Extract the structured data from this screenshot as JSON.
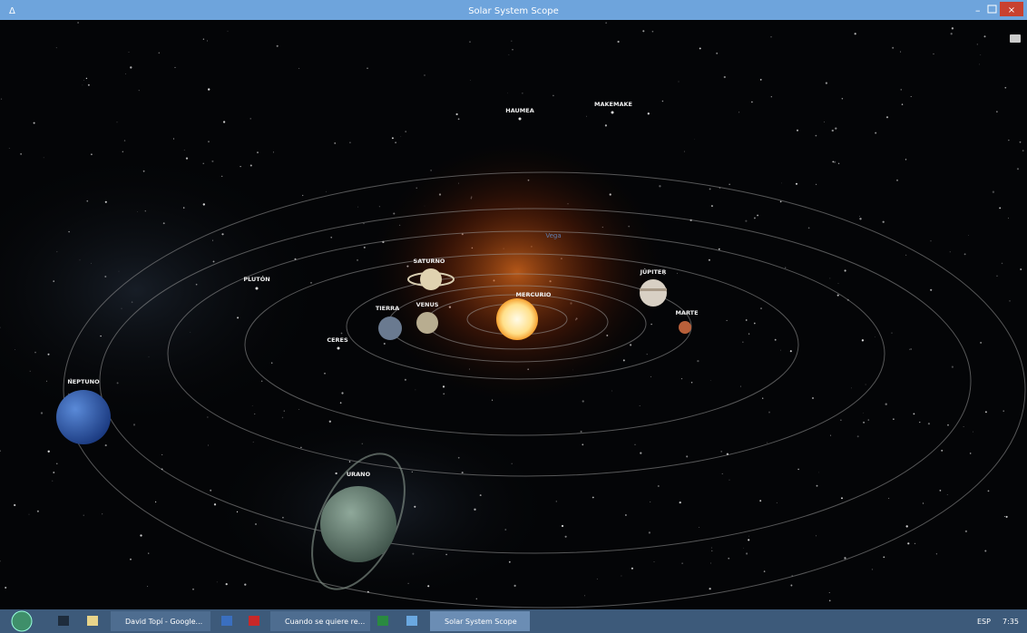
{
  "window": {
    "title": "Solar System Scope"
  },
  "bodies": [
    "HAUMEA",
    "MAKEMAKE",
    "SATURNO",
    "PLUTÓN",
    "JÚPITER",
    "MERCURIO",
    "VENUS",
    "TIERRA",
    "MARTE",
    "CERES",
    "NEPTUNO",
    "URANO"
  ],
  "star_labels": [
    "Vega"
  ],
  "taskbar": {
    "items": [
      "David Topí - Google...",
      "Cuando se quiere re...",
      "Solar System Scope"
    ],
    "language": "ESP",
    "time": "7:35"
  }
}
